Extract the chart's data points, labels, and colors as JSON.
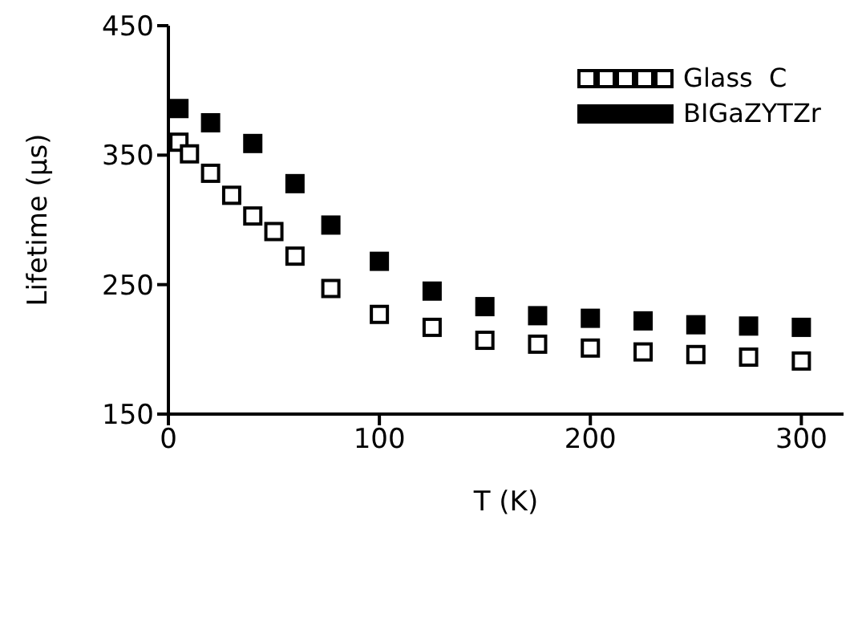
{
  "chart_data": {
    "type": "scatter",
    "xlabel": "T (K)",
    "ylabel": "Lifetime (μs)",
    "xlim": [
      0,
      320
    ],
    "xticks": [
      0,
      100,
      200,
      300
    ],
    "ylim": [
      150,
      450
    ],
    "yticks": [
      150,
      250,
      350,
      450
    ],
    "grid": false,
    "legend": "top right",
    "marker": "square",
    "series": [
      {
        "name": "Glass  C",
        "color": "#ffffff",
        "x": [
          5,
          10,
          20,
          30,
          40,
          50,
          60,
          77,
          100,
          125,
          150,
          175,
          200,
          225,
          250,
          275,
          300
        ],
        "values": [
          360,
          351,
          336,
          319,
          303,
          291,
          272,
          247,
          227,
          217,
          207,
          204,
          201,
          198,
          196,
          194,
          191
        ]
      },
      {
        "name": "BIGaZYTZr",
        "color": "#000000",
        "x": [
          5,
          20,
          40,
          60,
          77,
          100,
          125,
          150,
          175,
          200,
          225,
          250,
          275,
          300
        ],
        "values": [
          386,
          375,
          359,
          328,
          296,
          268,
          245,
          233,
          226,
          224,
          222,
          219,
          218,
          217
        ]
      }
    ]
  }
}
